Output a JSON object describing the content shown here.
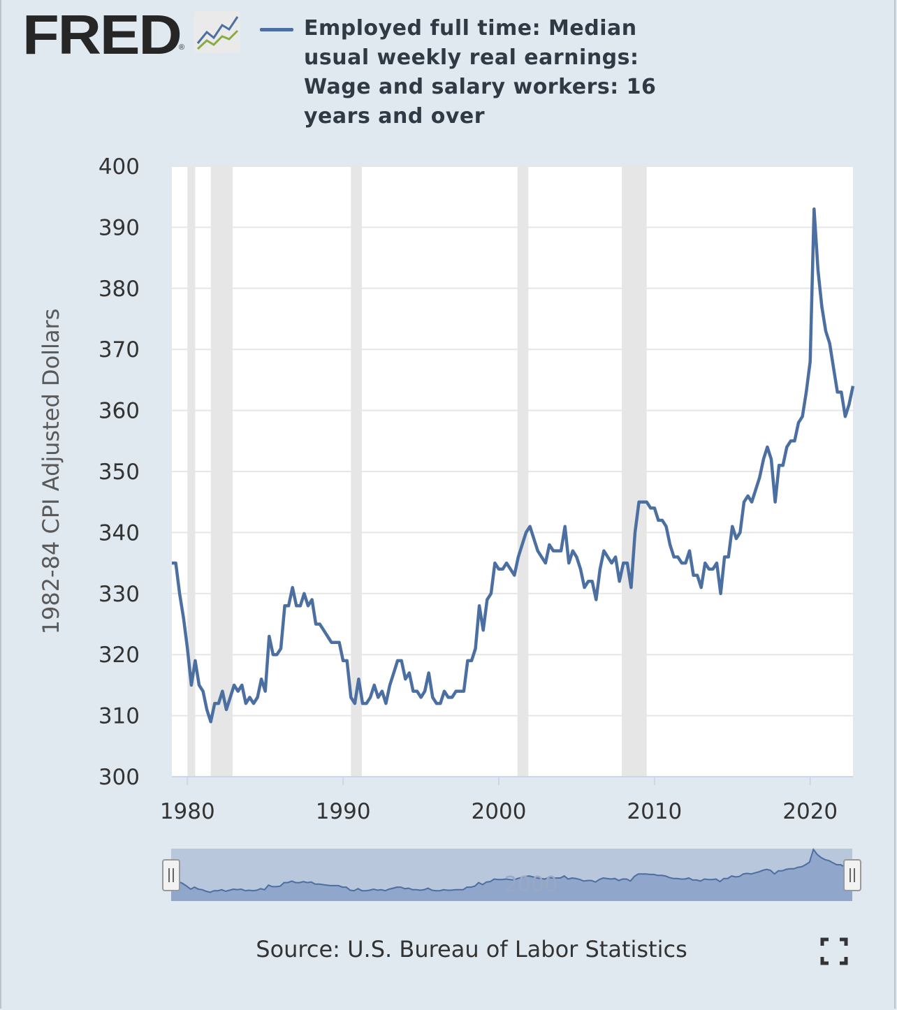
{
  "brand": {
    "name": "FRED",
    "registered_mark": "®"
  },
  "legend": {
    "label": "Employed full time: Median usual weekly real earnings: Wage and salary workers: 16 years and over"
  },
  "source": "Source: U.S. Bureau of Labor Statistics",
  "navigator": {
    "label": "2000"
  },
  "colors": {
    "series": "#4c6fa1",
    "background": "#e1e9f0",
    "plot": "#ffffff",
    "recession": "#e6e6e6",
    "grid": "#e6e6e6",
    "navigator_fill": "#b9c7dd",
    "navigator_series": "#7f98c2"
  },
  "chart_data": {
    "type": "line",
    "title": "Employed full time: Median usual weekly real earnings: Wage and salary workers: 16 years and over",
    "xlabel": "",
    "ylabel": "1982-84 CPI Adjusted Dollars",
    "ylim": [
      300,
      400
    ],
    "yticks": [
      "300",
      "310",
      "320",
      "330",
      "340",
      "350",
      "360",
      "370",
      "380",
      "390",
      "400"
    ],
    "xlim": [
      1979.0,
      2022.75
    ],
    "xticks": [
      "1980",
      "1990",
      "2000",
      "2010",
      "2020"
    ],
    "recessions": [
      [
        1980.0,
        1980.5
      ],
      [
        1981.5,
        1982.9
      ],
      [
        1990.5,
        1991.2
      ],
      [
        2001.2,
        2001.9
      ],
      [
        2007.9,
        2009.5
      ]
    ],
    "series": [
      {
        "name": "Employed full time: Median usual weekly real earnings: Wage and salary workers: 16 years and over",
        "x": [
          1979.0,
          1979.25,
          1979.5,
          1979.75,
          1980.0,
          1980.25,
          1980.5,
          1980.75,
          1981.0,
          1981.25,
          1981.5,
          1981.75,
          1982.0,
          1982.25,
          1982.5,
          1982.75,
          1983.0,
          1983.25,
          1983.5,
          1983.75,
          1984.0,
          1984.25,
          1984.5,
          1984.75,
          1985.0,
          1985.25,
          1985.5,
          1985.75,
          1986.0,
          1986.25,
          1986.5,
          1986.75,
          1987.0,
          1987.25,
          1987.5,
          1987.75,
          1988.0,
          1988.25,
          1988.5,
          1988.75,
          1989.0,
          1989.25,
          1989.5,
          1989.75,
          1990.0,
          1990.25,
          1990.5,
          1990.75,
          1991.0,
          1991.25,
          1991.5,
          1991.75,
          1992.0,
          1992.25,
          1992.5,
          1992.75,
          1993.0,
          1993.25,
          1993.5,
          1993.75,
          1994.0,
          1994.25,
          1994.5,
          1994.75,
          1995.0,
          1995.25,
          1995.5,
          1995.75,
          1996.0,
          1996.25,
          1996.5,
          1996.75,
          1997.0,
          1997.25,
          1997.5,
          1997.75,
          1998.0,
          1998.25,
          1998.5,
          1998.75,
          1999.0,
          1999.25,
          1999.5,
          1999.75,
          2000.0,
          2000.25,
          2000.5,
          2000.75,
          2001.0,
          2001.25,
          2001.5,
          2001.75,
          2002.0,
          2002.25,
          2002.5,
          2002.75,
          2003.0,
          2003.25,
          2003.5,
          2003.75,
          2004.0,
          2004.25,
          2004.5,
          2004.75,
          2005.0,
          2005.25,
          2005.5,
          2005.75,
          2006.0,
          2006.25,
          2006.5,
          2006.75,
          2007.0,
          2007.25,
          2007.5,
          2007.75,
          2008.0,
          2008.25,
          2008.5,
          2008.75,
          2009.0,
          2009.25,
          2009.5,
          2009.75,
          2010.0,
          2010.25,
          2010.5,
          2010.75,
          2011.0,
          2011.25,
          2011.5,
          2011.75,
          2012.0,
          2012.25,
          2012.5,
          2012.75,
          2013.0,
          2013.25,
          2013.5,
          2013.75,
          2014.0,
          2014.25,
          2014.5,
          2014.75,
          2015.0,
          2015.25,
          2015.5,
          2015.75,
          2016.0,
          2016.25,
          2016.5,
          2016.75,
          2017.0,
          2017.25,
          2017.5,
          2017.75,
          2018.0,
          2018.25,
          2018.5,
          2018.75,
          2019.0,
          2019.25,
          2019.5,
          2019.75,
          2020.0,
          2020.25,
          2020.5,
          2020.75,
          2021.0,
          2021.25,
          2021.5,
          2021.75,
          2022.0,
          2022.25,
          2022.5,
          2022.75
        ],
        "values": [
          335,
          335,
          330,
          326,
          321,
          315,
          319,
          315,
          314,
          311,
          309,
          312,
          312,
          314,
          311,
          313,
          315,
          314,
          315,
          312,
          313,
          312,
          313,
          316,
          314,
          323,
          320,
          320,
          321,
          328,
          328,
          331,
          328,
          328,
          330,
          328,
          329,
          325,
          325,
          324,
          323,
          322,
          322,
          322,
          319,
          319,
          313,
          312,
          316,
          312,
          312,
          313,
          315,
          313,
          314,
          312,
          315,
          317,
          319,
          319,
          316,
          317,
          314,
          314,
          313,
          314,
          317,
          313,
          312,
          312,
          314,
          313,
          313,
          314,
          314,
          314,
          319,
          319,
          321,
          328,
          324,
          329,
          330,
          335,
          334,
          334,
          335,
          334,
          333,
          336,
          338,
          340,
          341,
          339,
          337,
          336,
          335,
          338,
          337,
          337,
          337,
          341,
          335,
          337,
          336,
          334,
          331,
          332,
          332,
          329,
          334,
          337,
          336,
          335,
          336,
          332,
          335,
          335,
          331,
          340,
          345,
          345,
          345,
          344,
          344,
          342,
          342,
          341,
          338,
          336,
          336,
          335,
          335,
          337,
          333,
          333,
          331,
          335,
          334,
          334,
          335,
          330,
          336,
          336,
          341,
          339,
          340,
          345,
          346,
          345,
          347,
          349,
          352,
          354,
          352,
          345,
          351,
          351,
          354,
          355,
          355,
          358,
          359,
          363,
          368,
          393,
          383,
          377,
          373,
          371,
          367,
          363,
          363,
          359,
          361,
          364
        ]
      }
    ]
  }
}
